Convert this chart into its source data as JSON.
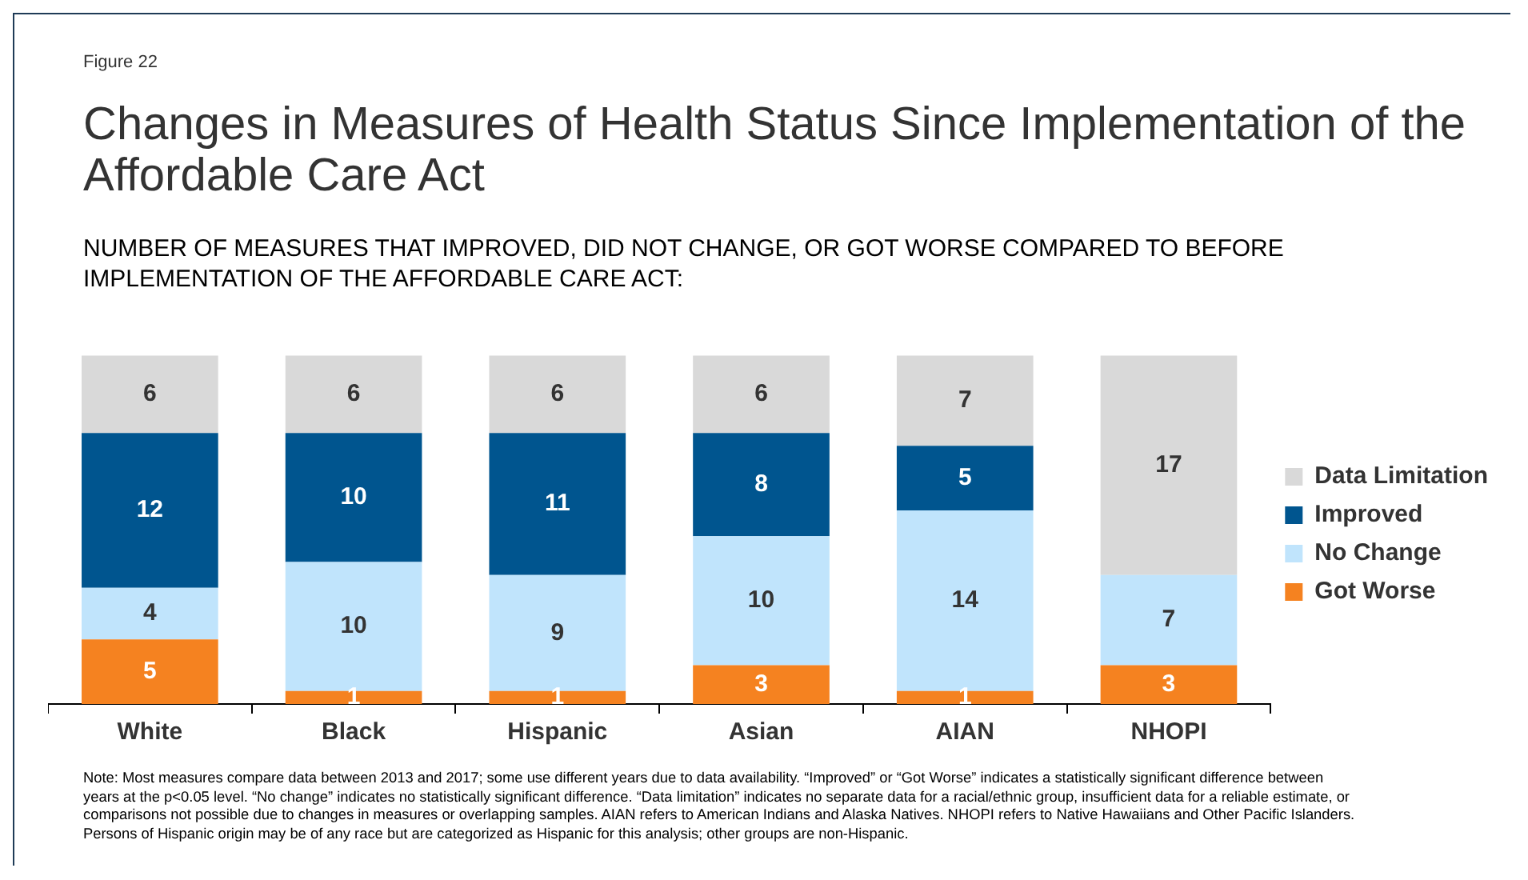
{
  "chart_data": {
    "type": "bar",
    "title": "Changes in Measures of Health Status Since Implementation of the Affordable Care Act",
    "subtitle": "NUMBER OF MEASURES THAT IMPROVED, DID NOT CHANGE, OR GOT WORSE COMPARED TO BEFORE IMPLEMENTATION OF THE AFFORDABLE CARE ACT:",
    "categories": [
      "White",
      "Black",
      "Hispanic",
      "Asian",
      "AIAN",
      "NHOPI"
    ],
    "stacked": true,
    "data_labels": true,
    "legend": "right",
    "series": [
      {
        "name": "Got Worse",
        "color": "#f58220",
        "values": [
          5,
          1,
          1,
          3,
          1,
          3
        ]
      },
      {
        "name": "No Change",
        "color": "#c0e4fc",
        "values": [
          4,
          10,
          9,
          10,
          14,
          7
        ]
      },
      {
        "name": "Improved",
        "color": "#00558f",
        "values": [
          12,
          10,
          11,
          8,
          5,
          null
        ]
      },
      {
        "name": "Data Limitation",
        "color": "#d9d9d9",
        "values": [
          6,
          6,
          6,
          6,
          7,
          17
        ]
      }
    ],
    "annotations": [
      "Figure 22",
      "Note: Most measures compare data between 2013 and 2017; some use different years due to data availability. “Improved” or “Got Worse” indicates a statistically significant difference between years at the p<0.05 level. “No change” indicates no statistically significant difference. “Data limitation” indicates no separate data for a racial/ethnic group, insufficient data for a reliable estimate, or comparisons not possible due to changes in measures or overlapping samples. AIAN refers to American Indians and Alaska Natives. NHOPI refers to Native Hawaiians and Other Pacific Islanders. Persons of Hispanic origin may be of any race but are categorized as Hispanic for this analysis; other groups are non-Hispanic."
    ]
  }
}
